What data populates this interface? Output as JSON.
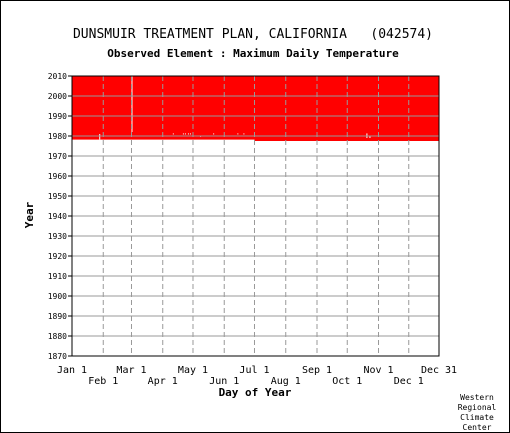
{
  "chart_data": {
    "type": "heatmap",
    "title": "DUNSMUIR TREATMENT PLAN, CALIFORNIA   (042574)",
    "subtitle": "Observed Element : Maximum Daily Temperature",
    "xlabel": "Day of Year",
    "ylabel": "Year",
    "ylim": [
      1870,
      2010
    ],
    "xlim": [
      1,
      365
    ],
    "grid": true,
    "colors": {
      "data": "#ff0000",
      "grid": "#999999",
      "axis": "#000000"
    },
    "y_ticks": [
      "1870",
      "1880",
      "1890",
      "1900",
      "1910",
      "1920",
      "1930",
      "1940",
      "1950",
      "1960",
      "1970",
      "1980",
      "1990",
      "2000",
      "2010"
    ],
    "x_ticks_upper": [
      {
        "label": "Jan 1",
        "day": 1
      },
      {
        "label": "Mar 1",
        "day": 60
      },
      {
        "label": "May 1",
        "day": 121
      },
      {
        "label": "Jul 1",
        "day": 182
      },
      {
        "label": "Sep 1",
        "day": 244
      },
      {
        "label": "Nov 1",
        "day": 305
      },
      {
        "label": "Dec 31",
        "day": 365
      }
    ],
    "x_ticks_lower": [
      {
        "label": "Feb 1",
        "day": 32
      },
      {
        "label": "Apr 1",
        "day": 91
      },
      {
        "label": "Jun 1",
        "day": 152
      },
      {
        "label": "Aug 1",
        "day": 213
      },
      {
        "label": "Oct 1",
        "day": 274
      },
      {
        "label": "Dec 1",
        "day": 335
      }
    ],
    "coverage": [
      {
        "from_day": 1,
        "to_day": 181,
        "from_year": 1978.2,
        "to_year": 2010
      },
      {
        "from_day": 182,
        "to_day": 365,
        "from_year": 1977.5,
        "to_year": 2010
      }
    ],
    "gaps": [
      {
        "day": 28,
        "from_year": 1978.2,
        "to_year": 1981
      },
      {
        "day": 60,
        "from_year": 1982,
        "to_year": 2010
      },
      {
        "day": 101,
        "from_year": 1980.8,
        "to_year": 1981.3
      },
      {
        "day": 111,
        "from_year": 1980.8,
        "to_year": 1981.3
      },
      {
        "day": 113,
        "from_year": 1980.8,
        "to_year": 1981.3
      },
      {
        "day": 116,
        "from_year": 1980.8,
        "to_year": 1981.3
      },
      {
        "day": 118,
        "from_year": 1980.8,
        "to_year": 1981.3
      },
      {
        "day": 128,
        "from_year": 1979.6,
        "to_year": 1980.1
      },
      {
        "day": 141,
        "from_year": 1980.8,
        "to_year": 1981.3
      },
      {
        "day": 165,
        "from_year": 1980.8,
        "to_year": 1981.3
      },
      {
        "day": 171,
        "from_year": 1980.8,
        "to_year": 1981.3
      },
      {
        "day": 293,
        "from_year": 1979.0,
        "to_year": 1981.3
      },
      {
        "day": 296,
        "from_year": 1979.0,
        "to_year": 1980.0
      }
    ]
  },
  "credit": [
    "Western",
    "Regional",
    "Climate",
    "Center"
  ]
}
